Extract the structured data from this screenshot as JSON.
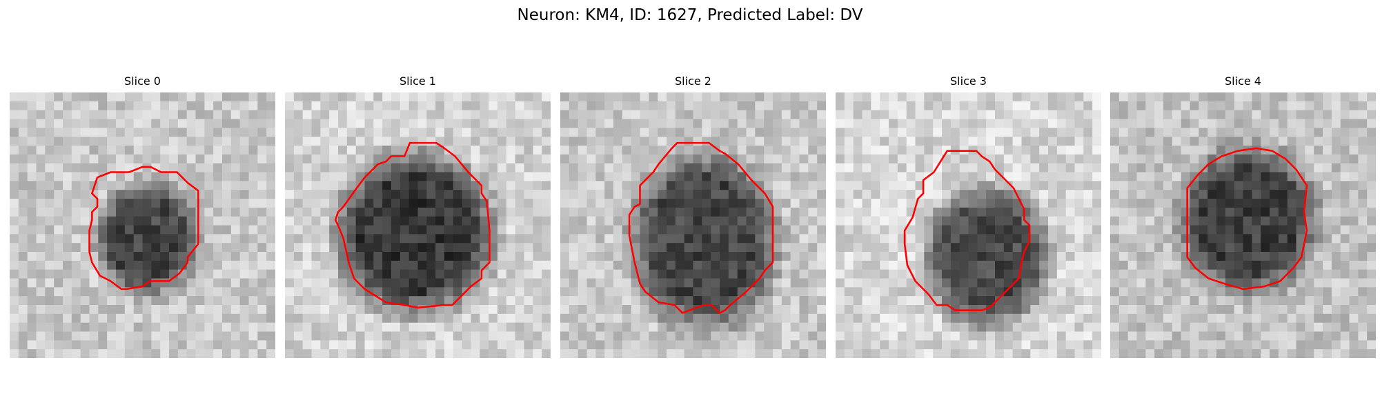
{
  "figure": {
    "title": "Neuron: KM4, ID: 1627, Predicted Label: DV"
  },
  "panels": [
    {
      "title": "Slice 0",
      "colormap": "grayscale",
      "contour_color": "#ff0000",
      "background_gray": 200,
      "cell_gray": 70,
      "cell_center": [
        0.52,
        0.55
      ],
      "cell_radius": [
        0.18,
        0.2
      ],
      "contour": [
        [
          0.33,
          0.32
        ],
        [
          0.38,
          0.3
        ],
        [
          0.45,
          0.3
        ],
        [
          0.5,
          0.28
        ],
        [
          0.53,
          0.28
        ],
        [
          0.57,
          0.3
        ],
        [
          0.63,
          0.3
        ],
        [
          0.67,
          0.34
        ],
        [
          0.71,
          0.37
        ],
        [
          0.71,
          0.57
        ],
        [
          0.67,
          0.62
        ],
        [
          0.67,
          0.64
        ],
        [
          0.64,
          0.68
        ],
        [
          0.6,
          0.71
        ],
        [
          0.53,
          0.71
        ],
        [
          0.5,
          0.73
        ],
        [
          0.44,
          0.74
        ],
        [
          0.42,
          0.74
        ],
        [
          0.38,
          0.71
        ],
        [
          0.34,
          0.69
        ],
        [
          0.31,
          0.64
        ],
        [
          0.3,
          0.6
        ],
        [
          0.3,
          0.52
        ],
        [
          0.31,
          0.48
        ],
        [
          0.31,
          0.45
        ],
        [
          0.33,
          0.43
        ],
        [
          0.33,
          0.4
        ],
        [
          0.31,
          0.38
        ]
      ]
    },
    {
      "title": "Slice 1",
      "colormap": "grayscale",
      "contour_color": "#ff0000",
      "background_gray": 210,
      "cell_gray": 55,
      "cell_center": [
        0.49,
        0.53
      ],
      "cell_radius": [
        0.28,
        0.29
      ],
      "contour": [
        [
          0.27,
          0.36
        ],
        [
          0.3,
          0.32
        ],
        [
          0.35,
          0.27
        ],
        [
          0.38,
          0.26
        ],
        [
          0.4,
          0.24
        ],
        [
          0.45,
          0.24
        ],
        [
          0.47,
          0.19
        ],
        [
          0.57,
          0.19
        ],
        [
          0.6,
          0.21
        ],
        [
          0.64,
          0.24
        ],
        [
          0.69,
          0.3
        ],
        [
          0.74,
          0.35
        ],
        [
          0.74,
          0.38
        ],
        [
          0.76,
          0.41
        ],
        [
          0.77,
          0.52
        ],
        [
          0.77,
          0.64
        ],
        [
          0.74,
          0.67
        ],
        [
          0.74,
          0.7
        ],
        [
          0.7,
          0.73
        ],
        [
          0.65,
          0.78
        ],
        [
          0.63,
          0.8
        ],
        [
          0.6,
          0.8
        ],
        [
          0.5,
          0.81
        ],
        [
          0.45,
          0.8
        ],
        [
          0.38,
          0.79
        ],
        [
          0.3,
          0.74
        ],
        [
          0.26,
          0.7
        ],
        [
          0.24,
          0.64
        ],
        [
          0.22,
          0.55
        ],
        [
          0.2,
          0.5
        ],
        [
          0.19,
          0.48
        ],
        [
          0.2,
          0.45
        ],
        [
          0.22,
          0.43
        ]
      ]
    },
    {
      "title": "Slice 2",
      "colormap": "grayscale",
      "contour_color": "#ff0000",
      "background_gray": 200,
      "cell_gray": 70,
      "cell_center": [
        0.54,
        0.56
      ],
      "cell_radius": [
        0.26,
        0.31
      ],
      "contour": [
        [
          0.3,
          0.35
        ],
        [
          0.32,
          0.33
        ],
        [
          0.35,
          0.3
        ],
        [
          0.37,
          0.27
        ],
        [
          0.42,
          0.21
        ],
        [
          0.44,
          0.19
        ],
        [
          0.56,
          0.19
        ],
        [
          0.6,
          0.22
        ],
        [
          0.62,
          0.23
        ],
        [
          0.67,
          0.27
        ],
        [
          0.72,
          0.33
        ],
        [
          0.77,
          0.38
        ],
        [
          0.8,
          0.43
        ],
        [
          0.8,
          0.6
        ],
        [
          0.8,
          0.64
        ],
        [
          0.77,
          0.67
        ],
        [
          0.75,
          0.7
        ],
        [
          0.7,
          0.75
        ],
        [
          0.64,
          0.8
        ],
        [
          0.62,
          0.82
        ],
        [
          0.6,
          0.83
        ],
        [
          0.57,
          0.8
        ],
        [
          0.54,
          0.8
        ],
        [
          0.46,
          0.83
        ],
        [
          0.43,
          0.8
        ],
        [
          0.37,
          0.79
        ],
        [
          0.32,
          0.75
        ],
        [
          0.3,
          0.72
        ],
        [
          0.28,
          0.64
        ],
        [
          0.26,
          0.54
        ],
        [
          0.26,
          0.46
        ],
        [
          0.28,
          0.43
        ],
        [
          0.3,
          0.42
        ]
      ]
    },
    {
      "title": "Slice 3",
      "colormap": "grayscale",
      "contour_color": "#ff0000",
      "background_gray": 215,
      "cell_gray": 75,
      "cell_center": [
        0.57,
        0.62
      ],
      "cell_radius": [
        0.22,
        0.25
      ],
      "contour": [
        [
          0.33,
          0.33
        ],
        [
          0.37,
          0.3
        ],
        [
          0.42,
          0.22
        ],
        [
          0.53,
          0.22
        ],
        [
          0.55,
          0.24
        ],
        [
          0.58,
          0.26
        ],
        [
          0.6,
          0.29
        ],
        [
          0.62,
          0.31
        ],
        [
          0.67,
          0.36
        ],
        [
          0.71,
          0.44
        ],
        [
          0.71,
          0.48
        ],
        [
          0.73,
          0.5
        ],
        [
          0.73,
          0.56
        ],
        [
          0.71,
          0.6
        ],
        [
          0.7,
          0.64
        ],
        [
          0.69,
          0.7
        ],
        [
          0.64,
          0.75
        ],
        [
          0.6,
          0.79
        ],
        [
          0.58,
          0.81
        ],
        [
          0.55,
          0.82
        ],
        [
          0.45,
          0.82
        ],
        [
          0.42,
          0.8
        ],
        [
          0.38,
          0.8
        ],
        [
          0.35,
          0.76
        ],
        [
          0.3,
          0.71
        ],
        [
          0.27,
          0.65
        ],
        [
          0.26,
          0.57
        ],
        [
          0.26,
          0.52
        ],
        [
          0.29,
          0.47
        ],
        [
          0.31,
          0.4
        ],
        [
          0.33,
          0.38
        ]
      ]
    },
    {
      "title": "Slice 4",
      "colormap": "grayscale",
      "contour_color": "#ff0000",
      "background_gray": 195,
      "cell_gray": 62,
      "cell_center": [
        0.52,
        0.48
      ],
      "cell_radius": [
        0.24,
        0.26
      ],
      "contour": [
        [
          0.29,
          0.36
        ],
        [
          0.33,
          0.31
        ],
        [
          0.37,
          0.27
        ],
        [
          0.42,
          0.24
        ],
        [
          0.48,
          0.22
        ],
        [
          0.55,
          0.21
        ],
        [
          0.61,
          0.22
        ],
        [
          0.66,
          0.25
        ],
        [
          0.7,
          0.29
        ],
        [
          0.74,
          0.35
        ],
        [
          0.73,
          0.45
        ],
        [
          0.74,
          0.52
        ],
        [
          0.72,
          0.62
        ],
        [
          0.69,
          0.66
        ],
        [
          0.64,
          0.71
        ],
        [
          0.58,
          0.73
        ],
        [
          0.5,
          0.74
        ],
        [
          0.43,
          0.72
        ],
        [
          0.37,
          0.7
        ],
        [
          0.32,
          0.66
        ],
        [
          0.29,
          0.62
        ],
        [
          0.29,
          0.5
        ],
        [
          0.29,
          0.43
        ]
      ]
    }
  ]
}
